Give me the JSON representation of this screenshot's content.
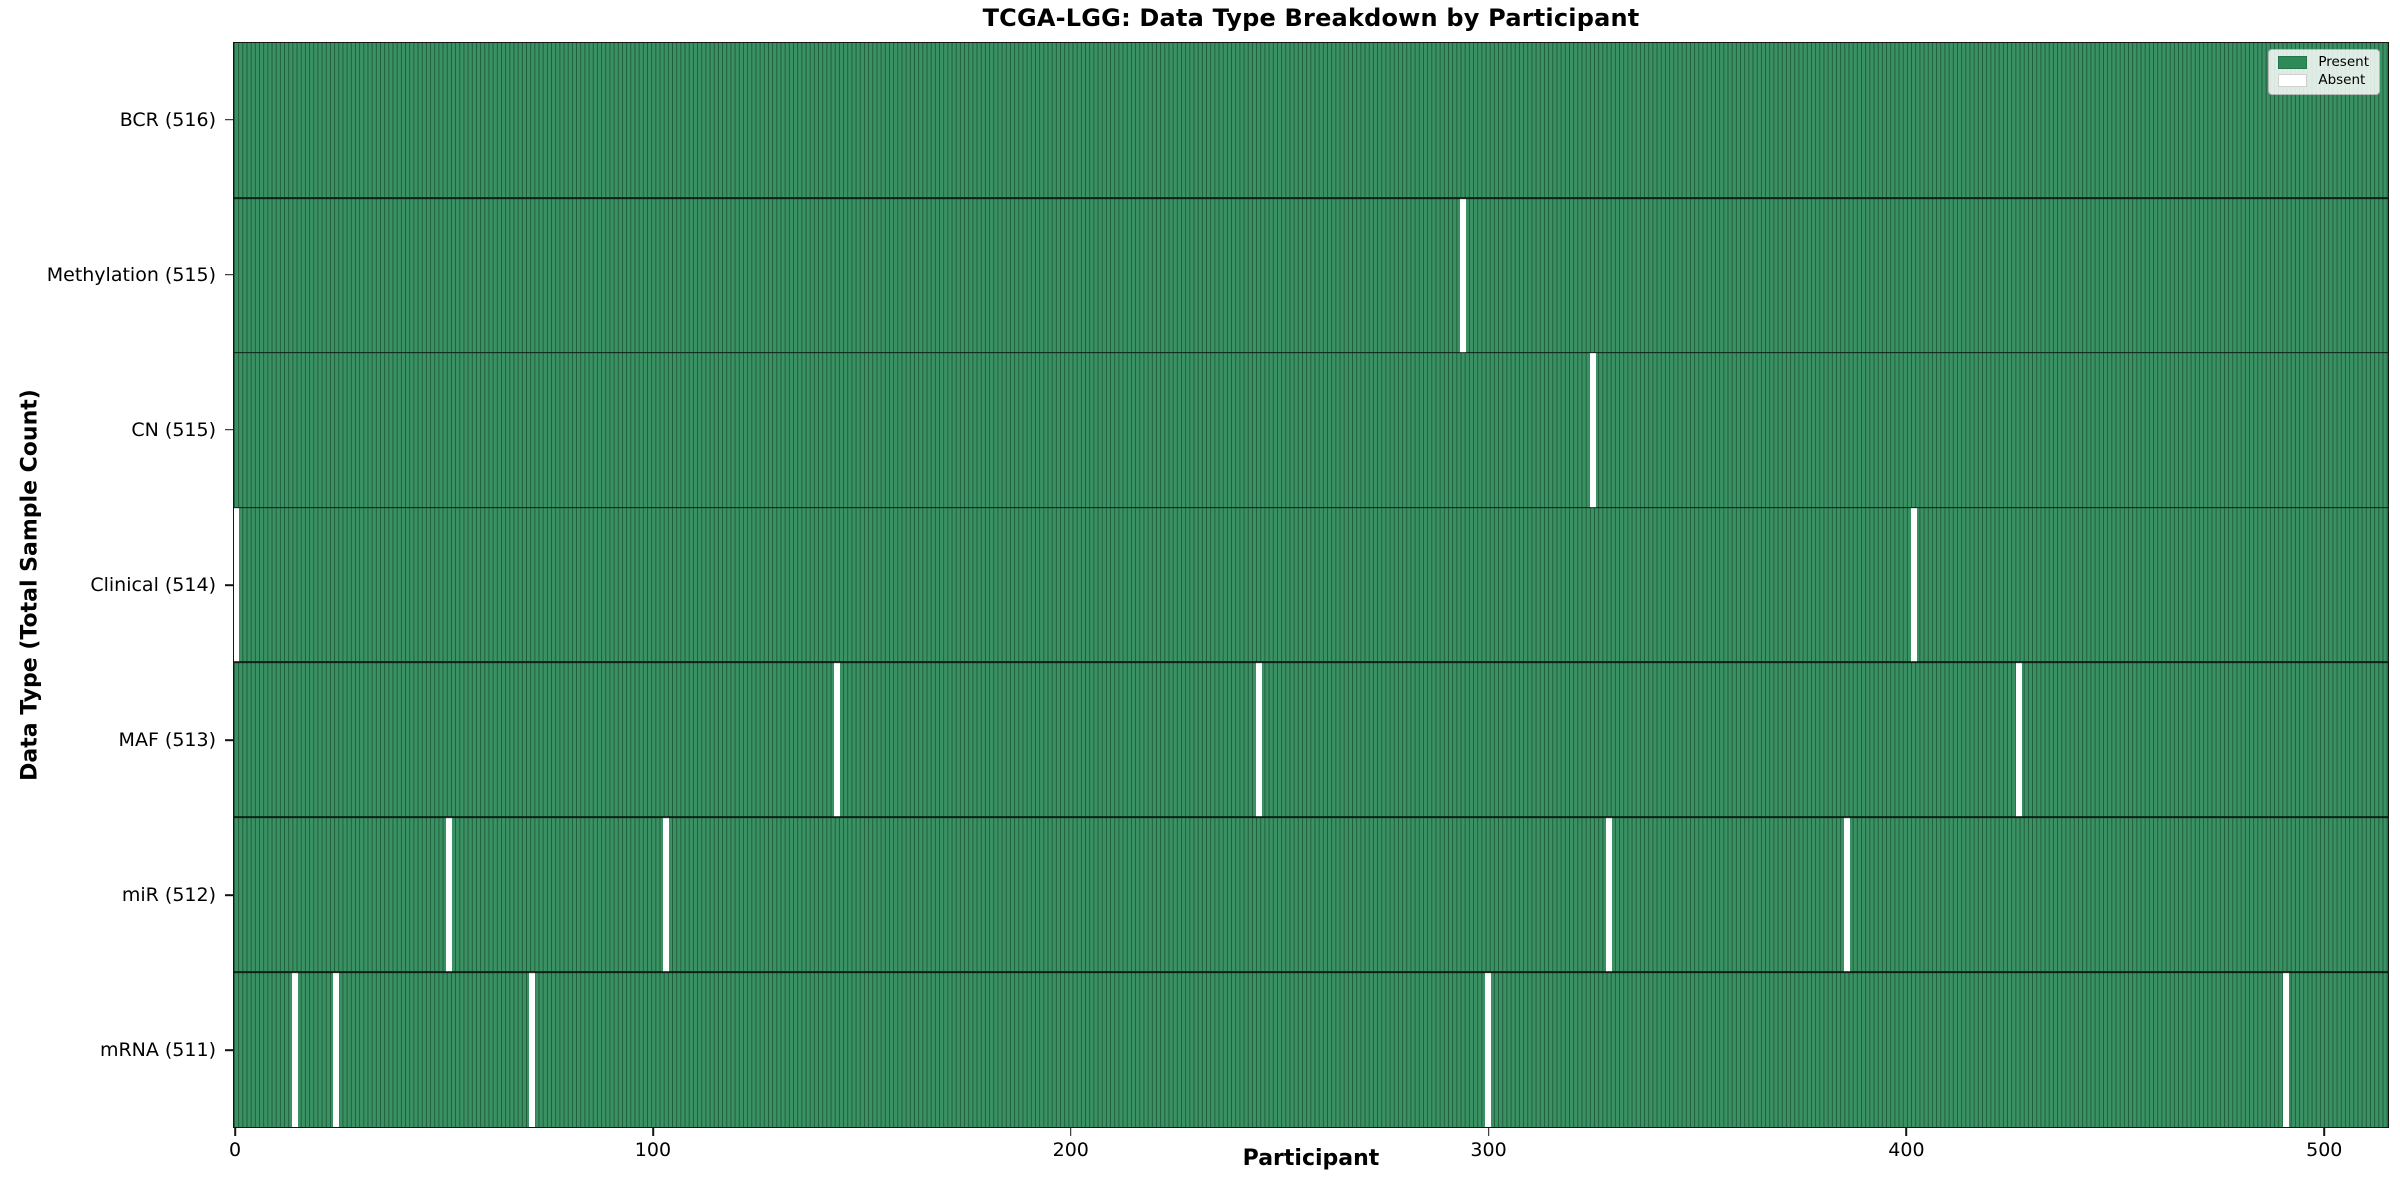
{
  "chart_data": {
    "type": "heatmap",
    "title": "TCGA-LGG: Data Type Breakdown by Participant",
    "xlabel": "Participant",
    "ylabel": "Data Type (Total Sample Count)",
    "n_participants": 516,
    "x_min": -0.5,
    "x_max": 515.5,
    "x_ticks": [
      0,
      100,
      200,
      300,
      400,
      500
    ],
    "grid": false,
    "colors": {
      "present_fill": "#3a9163",
      "present_swatch": "#2e8b57",
      "cell_edge": "#1f5c3a",
      "absent": "#ffffff",
      "row_divider": "#0a160e",
      "plot_border": "#141414",
      "figure_background": "#ffffff"
    },
    "legend": {
      "position": "upper right",
      "entries": [
        {
          "label": "Present",
          "color": "#2e8b57"
        },
        {
          "label": "Absent",
          "color": "#ffffff"
        }
      ]
    },
    "rows": [
      {
        "label": "BCR (516)",
        "name": "BCR",
        "present_count": 516,
        "absent_participants": []
      },
      {
        "label": "Methylation (515)",
        "name": "Methylation",
        "present_count": 515,
        "absent_participants": [
          294
        ]
      },
      {
        "label": "CN (515)",
        "name": "CN",
        "present_count": 515,
        "absent_participants": [
          325
        ]
      },
      {
        "label": "Clinical (514)",
        "name": "Clinical",
        "present_count": 514,
        "absent_participants": [
          0,
          402
        ]
      },
      {
        "label": "MAF (513)",
        "name": "MAF",
        "present_count": 513,
        "absent_participants": [
          144,
          245,
          427
        ]
      },
      {
        "label": "miR (512)",
        "name": "miR",
        "present_count": 512,
        "absent_participants": [
          51,
          103,
          329,
          386
        ]
      },
      {
        "label": "mRNA (511)",
        "name": "mRNA",
        "present_count": 511,
        "absent_participants": [
          14,
          24,
          71,
          300,
          491
        ]
      }
    ]
  }
}
